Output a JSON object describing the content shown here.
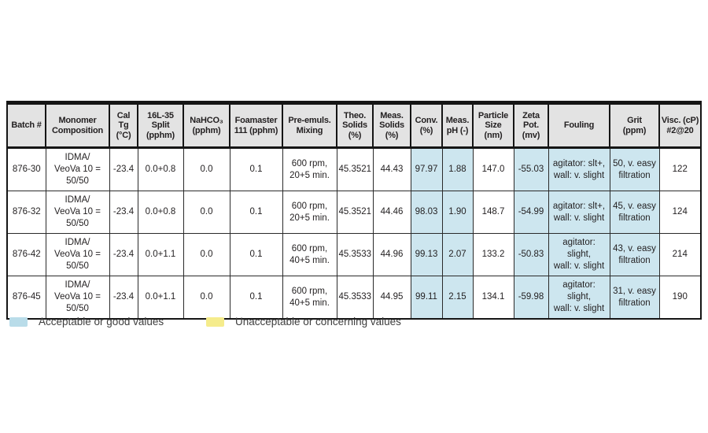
{
  "colors": {
    "header-bg": "#e3e3e3",
    "good-bg": "#cde6ef",
    "good-swatch": "#b9dce9",
    "bad-swatch": "#f5ec8c",
    "text": "#221f20"
  },
  "table": {
    "columns": [
      {
        "key": "batch",
        "label": "Batch #",
        "width": 49
      },
      {
        "key": "monomer",
        "label": "Monomer\nComposition",
        "width": 81
      },
      {
        "key": "cal-tg",
        "label": "Cal\nTg\n(°C)",
        "width": 36
      },
      {
        "key": "split",
        "label": "16L-35\nSplit\n(pphm)",
        "width": 58
      },
      {
        "key": "nahco3",
        "label": "NaHCO₃\n(pphm)",
        "width": 59
      },
      {
        "key": "foamaster",
        "label": "Foamaster\n111 (pphm)",
        "width": 67
      },
      {
        "key": "pre-emuls",
        "label": "Pre-emuls.\nMixing",
        "width": 69
      },
      {
        "key": "theo-solids",
        "label": "Theo.\nSolids\n(%)",
        "width": 46
      },
      {
        "key": "meas-solids",
        "label": "Meas.\nSolids\n(%)",
        "width": 48
      },
      {
        "key": "conv",
        "label": "Conv.\n(%)",
        "width": 40
      },
      {
        "key": "meas-ph",
        "label": "Meas.\npH (-)",
        "width": 39
      },
      {
        "key": "particle-size",
        "label": "Particle\nSize\n(nm)",
        "width": 52
      },
      {
        "key": "zeta-pot",
        "label": "Zeta\nPot.\n(mv)",
        "width": 44
      },
      {
        "key": "fouling",
        "label": "Fouling",
        "width": 78
      },
      {
        "key": "grit",
        "label": "Grit\n(ppm)",
        "width": 63
      },
      {
        "key": "visc",
        "label": "Visc. (cP)\n#2@20",
        "width": 53
      }
    ],
    "highlight_columns": [
      9,
      10,
      12,
      13,
      14
    ],
    "rows": [
      [
        "876-30",
        "IDMA/\nVeoVa 10 =\n50/50",
        "-23.4",
        "0.0+0.8",
        "0.0",
        "0.1",
        "600 rpm,\n20+5 min.",
        "45.3521",
        "44.43",
        "97.97",
        "1.88",
        "147.0",
        "-55.03",
        "agitator: slt+,\nwall: v. slight",
        "50, v. easy\nfiltration",
        "122"
      ],
      [
        "876-32",
        "IDMA/\nVeoVa 10 =\n50/50",
        "-23.4",
        "0.0+0.8",
        "0.0",
        "0.1",
        "600 rpm,\n20+5 min.",
        "45.3521",
        "44.46",
        "98.03",
        "1.90",
        "148.7",
        "-54.99",
        "agitator: slt+,\nwall: v. slight",
        "45, v. easy\nfiltration",
        "124"
      ],
      [
        "876-42",
        "IDMA/\nVeoVa 10 =\n50/50",
        "-23.4",
        "0.0+1.1",
        "0.0",
        "0.1",
        "600 rpm,\n40+5 min.",
        "45.3533",
        "44.96",
        "99.13",
        "2.07",
        "133.2",
        "-50.83",
        "agitator:\nslight,\nwall: v. slight",
        "43, v. easy\nfiltration",
        "214"
      ],
      [
        "876-45",
        "IDMA/\nVeoVa 10 =\n50/50",
        "-23.4",
        "0.0+1.1",
        "0.0",
        "0.1",
        "600 rpm,\n40+5 min.",
        "45.3533",
        "44.95",
        "99.11",
        "2.15",
        "134.1",
        "-59.98",
        "agitator:\nslight,\nwall: v. slight",
        "31, v. easy\nfiltration",
        "190"
      ]
    ]
  },
  "legend": {
    "good_label": "Acceptable or good values",
    "bad_label": "Unacceptable or concerning values"
  }
}
